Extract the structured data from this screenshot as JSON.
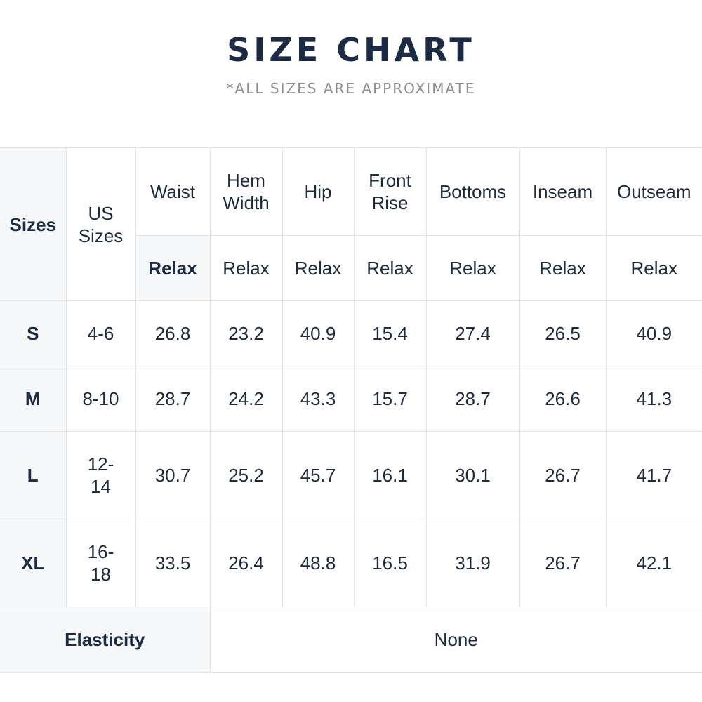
{
  "header": {
    "title": "SIZE CHART",
    "subtitle": "*ALL SIZES ARE APPROXIMATE"
  },
  "table": {
    "size_header": "Sizes",
    "us_header": "US Sizes",
    "columns": [
      "Waist",
      "Hem Width",
      "Hip",
      "Front Rise",
      "Bottoms",
      "Inseam",
      "Outseam"
    ],
    "subheader": [
      "Relax",
      "Relax",
      "Relax",
      "Relax",
      "Relax",
      "Relax",
      "Relax"
    ],
    "rows": [
      [
        "S",
        "4-6",
        26.8,
        23.2,
        40.9,
        15.4,
        27.4,
        26.5,
        40.9
      ],
      [
        "M",
        "8-10",
        28.7,
        24.2,
        43.3,
        15.7,
        28.7,
        26.6,
        41.3
      ],
      [
        "L",
        "12-14",
        30.7,
        25.2,
        45.7,
        16.1,
        30.1,
        26.7,
        41.7
      ],
      [
        "XL",
        "16-18",
        33.5,
        26.4,
        48.8,
        16.5,
        31.9,
        26.7,
        42.1
      ]
    ],
    "footer": {
      "label": "Elasticity",
      "value": "None"
    }
  }
}
